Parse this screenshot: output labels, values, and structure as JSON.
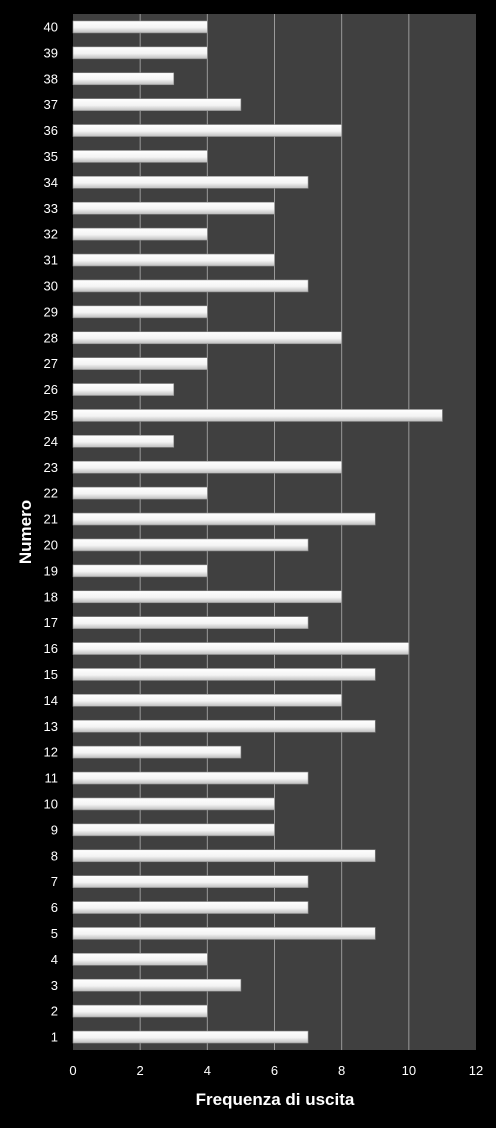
{
  "chart_data": {
    "type": "bar",
    "orientation": "horizontal",
    "xlabel": "Frequenza di uscita",
    "ylabel": "Numero",
    "xlim": [
      0,
      12
    ],
    "xticks": [
      "0",
      "2",
      "4",
      "6",
      "8",
      "10",
      "12"
    ],
    "grid": true,
    "legend": "none",
    "categories": [
      "1",
      "2",
      "3",
      "4",
      "5",
      "6",
      "7",
      "8",
      "9",
      "10",
      "11",
      "12",
      "13",
      "14",
      "15",
      "16",
      "17",
      "18",
      "19",
      "20",
      "21",
      "22",
      "23",
      "24",
      "25",
      "26",
      "27",
      "28",
      "29",
      "30",
      "31",
      "32",
      "33",
      "34",
      "35",
      "36",
      "37",
      "38",
      "39",
      "40"
    ],
    "values": [
      7,
      4,
      5,
      4,
      9,
      7,
      7,
      9,
      6,
      6,
      7,
      5,
      9,
      8,
      9,
      10,
      7,
      8,
      4,
      7,
      9,
      4,
      8,
      3,
      11,
      3,
      4,
      8,
      4,
      7,
      6,
      4,
      6,
      7,
      4,
      8,
      5,
      3,
      4,
      4
    ],
    "colors": {
      "background": "#000000",
      "plot_area": "#404040",
      "gridline": "#9a9a9a",
      "bar": "#ffffff",
      "text": "#ffffff"
    }
  }
}
